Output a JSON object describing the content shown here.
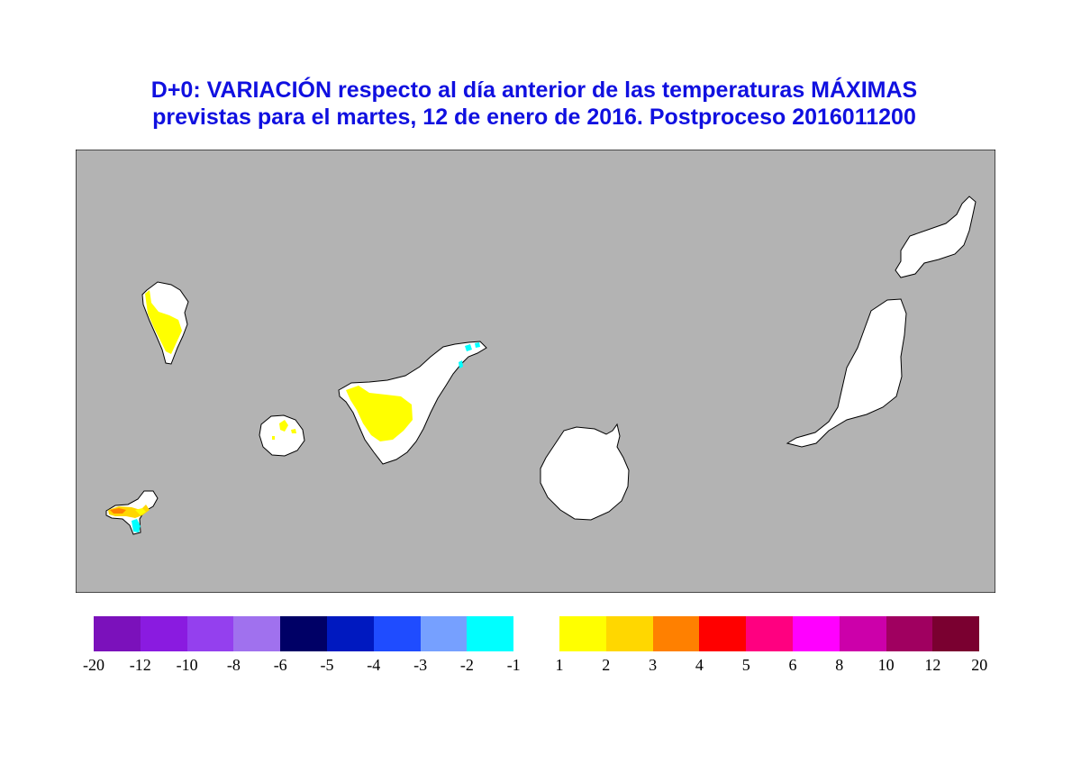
{
  "title": {
    "line1": "D+0:  VARIACIÓN respecto al día anterior de las temperaturas MÁXIMAS",
    "line2": "previstas para el martes, 12 de enero de 2016. Postproceso 2016011200"
  },
  "map": {
    "sea_color": "#b3b3b3",
    "land_color": "#ffffff",
    "islands": [
      "la-palma",
      "el-hierro",
      "la-gomera",
      "tenerife",
      "gran-canaria",
      "fuerteventura",
      "lanzarote"
    ],
    "anomalies": [
      {
        "island": "la-palma",
        "class": "1 a 2",
        "color": "#ffff00"
      },
      {
        "island": "tenerife",
        "class": "1 a 2",
        "color": "#ffff00"
      },
      {
        "island": "tenerife",
        "class": "-2 a -1",
        "color": "#00ffff"
      },
      {
        "island": "la-gomera",
        "class": "1 a 2",
        "color": "#ffff00"
      },
      {
        "island": "el-hierro",
        "class": "1 a 2",
        "color": "#ffff00"
      },
      {
        "island": "el-hierro",
        "class": "2 a 3",
        "color": "#ffd700"
      },
      {
        "island": "el-hierro",
        "class": "3 a 4",
        "color": "#ff8000"
      },
      {
        "island": "el-hierro",
        "class": "-2 a -1",
        "color": "#00ffff"
      }
    ]
  },
  "legend": {
    "negative": {
      "colors": [
        "#7b11bb",
        "#8a1be0",
        "#9440ee",
        "#a071ee",
        "#000066",
        "#0019c0",
        "#1f4cff",
        "#76a0ff",
        "#00ffff"
      ],
      "ticks": [
        "-20",
        "-12",
        "-10",
        "-8",
        "-6",
        "-5",
        "-4",
        "-3",
        "-2",
        "-1"
      ]
    },
    "positive": {
      "colors": [
        "#ffff00",
        "#ffd700",
        "#ff8000",
        "#ff0000",
        "#ff0080",
        "#ff00ff",
        "#cc00aa",
        "#a00060",
        "#7a0030"
      ],
      "ticks": [
        "1",
        "2",
        "3",
        "4",
        "5",
        "6",
        "8",
        "10",
        "12",
        "20"
      ]
    }
  }
}
